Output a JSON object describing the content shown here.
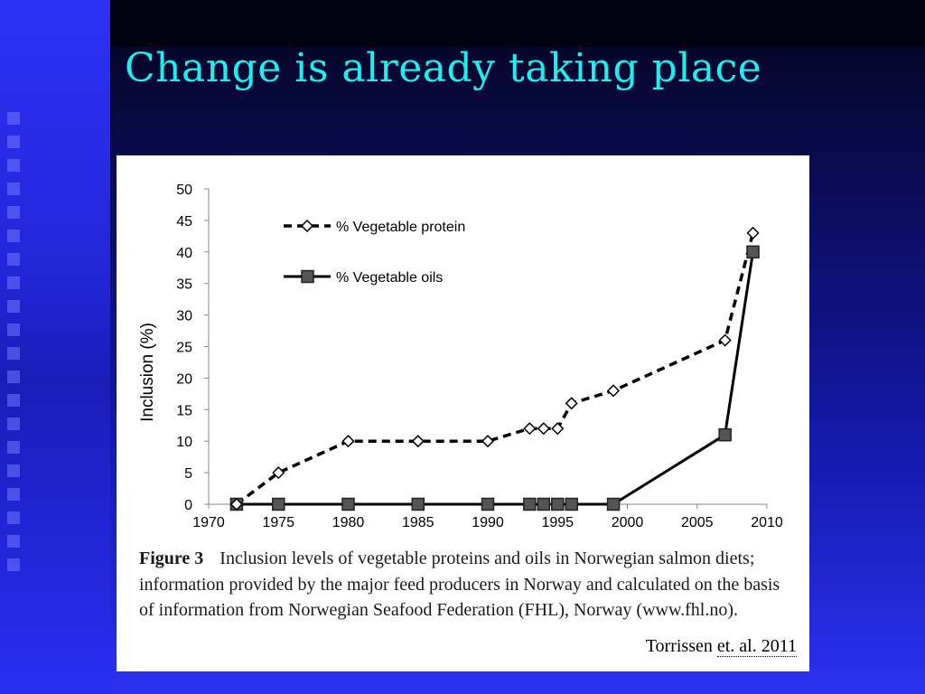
{
  "slide": {
    "title": "Change is already taking place"
  },
  "figure": {
    "caption_label": "Figure 3",
    "caption_text": "Inclusion levels of vegetable proteins and oils in Norwegian salmon diets; information provided by the major feed producers in Norway and calculated on the basis of information from Norwegian Seafood Federation (FHL), Norway (www.fhl.no).",
    "citation_author": "Torrissen",
    "citation_etal": "et. al. 2011"
  },
  "colors": {
    "title": "#19f0f0",
    "panel_bg": "#ffffff",
    "series_line": "#000000",
    "oil_marker": "#555555"
  },
  "chart_data": {
    "type": "line",
    "title": "",
    "xlabel": "",
    "ylabel": "Inclusion (%)",
    "xlim": [
      1970,
      2010
    ],
    "ylim": [
      0,
      50
    ],
    "xticks": [
      1970,
      1975,
      1980,
      1985,
      1990,
      1995,
      2000,
      2005,
      2010
    ],
    "yticks": [
      0,
      5,
      10,
      15,
      20,
      25,
      30,
      35,
      40,
      45,
      50
    ],
    "grid": false,
    "legend": "top-left",
    "series": [
      {
        "name": "% Vegetable protein",
        "style": "dashed",
        "marker": "diamond",
        "x": [
          1972,
          1975,
          1980,
          1985,
          1990,
          1993,
          1994,
          1995,
          1996,
          1999,
          2007,
          2009
        ],
        "y": [
          0,
          5,
          10,
          10,
          10,
          12,
          12,
          12,
          16,
          18,
          26,
          43
        ]
      },
      {
        "name": "% Vegetable oils",
        "style": "solid",
        "marker": "square",
        "x": [
          1972,
          1975,
          1980,
          1985,
          1990,
          1993,
          1994,
          1995,
          1996,
          1999,
          2007,
          2009
        ],
        "y": [
          0,
          0,
          0,
          0,
          0,
          0,
          0,
          0,
          0,
          0,
          11,
          40
        ]
      }
    ]
  }
}
